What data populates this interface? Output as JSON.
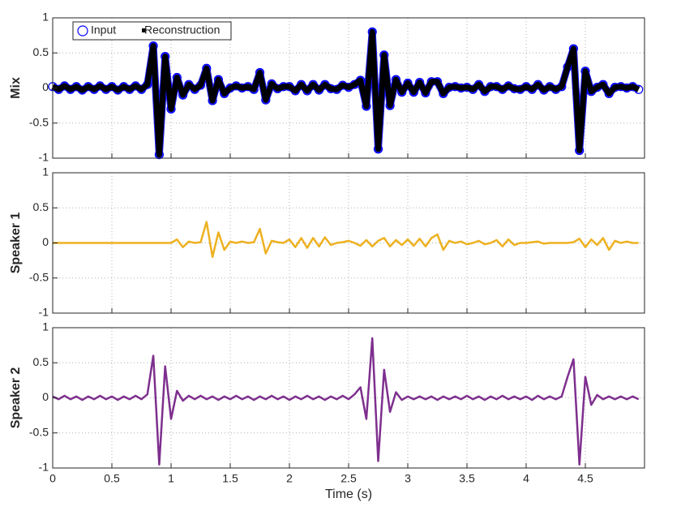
{
  "chart_data": {
    "type": "line",
    "xlabel": "Time (s)",
    "xlim": [
      0,
      5
    ],
    "xticks": [
      0,
      0.5,
      1,
      1.5,
      2,
      2.5,
      3,
      3.5,
      4,
      4.5
    ],
    "grid": true,
    "x": [
      0,
      0.05,
      0.1,
      0.15,
      0.2,
      0.25,
      0.3,
      0.35,
      0.4,
      0.45,
      0.5,
      0.55,
      0.6,
      0.65,
      0.7,
      0.75,
      0.8,
      0.85,
      0.9,
      0.95,
      1,
      1.05,
      1.1,
      1.15,
      1.2,
      1.25,
      1.3,
      1.35,
      1.4,
      1.45,
      1.5,
      1.55,
      1.6,
      1.65,
      1.7,
      1.75,
      1.8,
      1.85,
      1.9,
      1.95,
      2,
      2.05,
      2.1,
      2.15,
      2.2,
      2.25,
      2.3,
      2.35,
      2.4,
      2.45,
      2.5,
      2.55,
      2.6,
      2.65,
      2.7,
      2.75,
      2.8,
      2.85,
      2.9,
      2.95,
      3,
      3.05,
      3.1,
      3.15,
      3.2,
      3.25,
      3.3,
      3.35,
      3.4,
      3.45,
      3.5,
      3.55,
      3.6,
      3.65,
      3.7,
      3.75,
      3.8,
      3.85,
      3.9,
      3.95,
      4,
      4.05,
      4.1,
      4.15,
      4.2,
      4.25,
      4.3,
      4.35,
      4.4,
      4.45,
      4.5,
      4.55,
      4.6,
      4.65,
      4.7,
      4.75,
      4.8,
      4.85,
      4.9,
      4.95
    ],
    "panels": [
      {
        "ylabel": "Mix",
        "ylim": [
          -1,
          1
        ],
        "yticks": [
          -1,
          -0.5,
          0,
          0.5,
          1
        ],
        "legend": "upper left",
        "series": [
          {
            "name": "Input",
            "color": "#0000ff",
            "marker": "circle",
            "values": [
              0.02,
              -0.02,
              0.03,
              -0.02,
              0.02,
              -0.03,
              0.02,
              -0.02,
              0.03,
              -0.02,
              0.02,
              -0.03,
              0.02,
              -0.02,
              0.03,
              -0.02,
              0.05,
              0.6,
              -0.95,
              0.45,
              -0.3,
              0.15,
              -0.1,
              0.05,
              -0.02,
              0.04,
              0.28,
              -0.18,
              0.12,
              -0.08,
              0,
              0.03,
              0,
              0.02,
              -0.02,
              0.22,
              -0.17,
              0.06,
              -0.01,
              0.02,
              0.02,
              -0.04,
              0.05,
              -0.04,
              0.05,
              -0.03,
              0.05,
              -0.01,
              -0.02,
              0.04,
              0.01,
              0.05,
              0.11,
              -0.26,
              0.8,
              -0.87,
              0.47,
              -0.25,
              0.12,
              -0.06,
              0.07,
              -0.06,
              0.08,
              -0.07,
              0.09,
              0.09,
              -0.08,
              0.01,
              0.02,
              0,
              0.01,
              -0.02,
              0.05,
              -0.05,
              0.02,
              0.02,
              -0.02,
              0.03,
              -0.01,
              -0.02,
              0.02,
              -0.02,
              0.05,
              -0.03,
              0.02,
              -0.02,
              0.02,
              0.3,
              0.56,
              -0.89,
              0.24,
              -0.05,
              0.01,
              0.05,
              -0.08,
              0.01,
              0.02,
              0,
              0.02,
              -0.02
            ]
          },
          {
            "name": "Reconstruction",
            "color": "#000000",
            "marker": "square",
            "values": [
              0.02,
              -0.02,
              0.03,
              -0.02,
              0.02,
              -0.03,
              0.02,
              -0.02,
              0.03,
              -0.02,
              0.02,
              -0.03,
              0.02,
              -0.02,
              0.03,
              -0.02,
              0.05,
              0.6,
              -0.95,
              0.45,
              -0.3,
              0.15,
              -0.1,
              0.05,
              -0.02,
              0.04,
              0.28,
              -0.18,
              0.12,
              -0.08,
              0,
              0.03,
              0,
              0.02,
              -0.02,
              0.22,
              -0.17,
              0.06,
              -0.01,
              0.02,
              0.02,
              -0.04,
              0.05,
              -0.04,
              0.05,
              -0.03,
              0.05,
              -0.01,
              -0.02,
              0.04,
              0.01,
              0.05,
              0.11,
              -0.26,
              0.8,
              -0.87,
              0.47,
              -0.25,
              0.12,
              -0.06,
              0.07,
              -0.06,
              0.08,
              -0.07,
              0.09,
              0.09,
              -0.08,
              0.01,
              0.02,
              0,
              0.01,
              -0.02,
              0.05,
              -0.05,
              0.02,
              0.02,
              -0.02,
              0.03,
              -0.01,
              -0.02,
              0.02,
              -0.02,
              0.05,
              -0.03,
              0.02,
              -0.02,
              0.02,
              0.3,
              0.56,
              -0.89,
              0.24,
              -0.05,
              0.01,
              0.05,
              -0.08,
              0.01,
              0.02,
              0,
              0.02,
              -0.02
            ]
          }
        ]
      },
      {
        "ylabel": "Speaker 1",
        "ylim": [
          -1,
          1
        ],
        "yticks": [
          -1,
          -0.5,
          0,
          0.5,
          1
        ],
        "series": [
          {
            "color": "#edb120",
            "values": [
              0,
              0,
              0,
              0,
              0,
              0,
              0,
              0,
              0,
              0,
              0,
              0,
              0,
              0,
              0,
              0,
              0,
              0,
              0,
              0,
              0,
              0.05,
              -0.06,
              0.02,
              0,
              0.01,
              0.3,
              -0.2,
              0.15,
              -0.1,
              0.02,
              0,
              0.02,
              0,
              0.01,
              0.2,
              -0.15,
              0.03,
              0.01,
              0,
              0.05,
              -0.06,
              0.07,
              -0.07,
              0.07,
              -0.05,
              0.08,
              -0.03,
              0,
              0.01,
              0.03,
              0,
              -0.04,
              0.04,
              -0.05,
              0.03,
              0.07,
              -0.05,
              0.04,
              -0.03,
              0.05,
              -0.04,
              0.06,
              -0.05,
              0.07,
              0.12,
              -0.1,
              0.03,
              0,
              0.02,
              -0.02,
              0,
              0.03,
              -0.02,
              0,
              0.04,
              -0.05,
              0.05,
              -0.03,
              0,
              0,
              0.01,
              0.02,
              -0.01,
              0,
              0,
              0,
              0,
              0.01,
              0.06,
              -0.06,
              0.05,
              -0.03,
              0.07,
              -0.1,
              0.03,
              0,
              0.02,
              0,
              0
            ]
          }
        ]
      },
      {
        "ylabel": "Speaker 2",
        "ylim": [
          -1,
          1
        ],
        "yticks": [
          -1,
          -0.5,
          0,
          0.5,
          1
        ],
        "series": [
          {
            "color": "#7e2f8e",
            "values": [
              0.02,
              -0.02,
              0.03,
              -0.02,
              0.02,
              -0.03,
              0.02,
              -0.02,
              0.03,
              -0.02,
              0.02,
              -0.03,
              0.02,
              -0.02,
              0.03,
              -0.02,
              0.05,
              0.6,
              -0.95,
              0.45,
              -0.3,
              0.1,
              -0.04,
              0.03,
              -0.02,
              0.03,
              -0.02,
              0.02,
              -0.03,
              0.02,
              -0.02,
              0.03,
              -0.02,
              0.02,
              -0.03,
              0.02,
              -0.02,
              0.03,
              -0.02,
              0.02,
              -0.03,
              0.02,
              -0.02,
              0.03,
              -0.02,
              0.02,
              -0.03,
              0.02,
              -0.02,
              0.03,
              -0.02,
              0.05,
              0.15,
              -0.3,
              0.85,
              -0.9,
              0.4,
              -0.2,
              0.08,
              -0.03,
              0.02,
              -0.02,
              0.02,
              -0.02,
              0.02,
              -0.03,
              0.02,
              -0.02,
              0.02,
              -0.02,
              0.03,
              -0.02,
              0.02,
              -0.03,
              0.02,
              -0.02,
              0.03,
              -0.02,
              0.02,
              -0.02,
              0.02,
              -0.03,
              0.03,
              -0.02,
              0.02,
              -0.02,
              0.02,
              0.3,
              0.55,
              -0.95,
              0.3,
              -0.1,
              0.04,
              -0.02,
              0.02,
              -0.02,
              0.02,
              -0.02,
              0.02,
              -0.02
            ]
          }
        ]
      }
    ]
  }
}
